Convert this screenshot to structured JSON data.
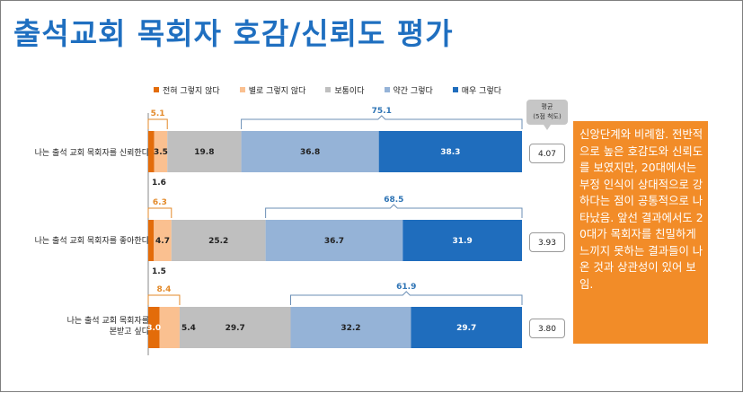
{
  "title": "출석교회 목회자 호감/신뢰도 평가",
  "avg_badge": {
    "line1": "평균",
    "line2": "(5점 척도)"
  },
  "note": "신앙단계와 비례함. 전반적으로 높은 호감도와 신뢰도를 보였지만, 20대에서는 부정 인식이 상대적으로 강하다는 점이 공통적으로 나타났음. 앞선 결과에서도 20대가 목회자를 친밀하게 느끼지 못하는 결과들이 나온 것과 상관성이 있어 보임.",
  "chart_data": {
    "type": "bar",
    "orientation": "horizontal",
    "stacked": true,
    "categories": [
      "나는 출석 교회 목회자를 신뢰한다",
      "나는 출석 교회 목회자를 좋아한다",
      "나는 출석 교회 목회자를 본받고 싶다"
    ],
    "series": [
      {
        "name": "전혀 그렇지 않다",
        "color": "#e36c0a",
        "values": [
          1.6,
          1.5,
          3.0
        ]
      },
      {
        "name": "별로 그렇지 않다",
        "color": "#fac090",
        "values": [
          3.5,
          4.7,
          5.4
        ]
      },
      {
        "name": "보통이다",
        "color": "#bfbfbf",
        "values": [
          19.8,
          25.2,
          29.7
        ]
      },
      {
        "name": "약간 그렇다",
        "color": "#95b3d7",
        "values": [
          36.8,
          36.7,
          32.2
        ]
      },
      {
        "name": "매우 그렇다",
        "color": "#1f6dbd",
        "values": [
          38.3,
          31.9,
          29.7
        ]
      }
    ],
    "negative_totals": [
      "5.1",
      "6.3",
      "8.4"
    ],
    "positive_totals": [
      "75.1",
      "68.5",
      "61.9"
    ],
    "averages": [
      "4.07",
      "3.93",
      "3.80"
    ],
    "xlim": [
      0,
      100
    ]
  }
}
